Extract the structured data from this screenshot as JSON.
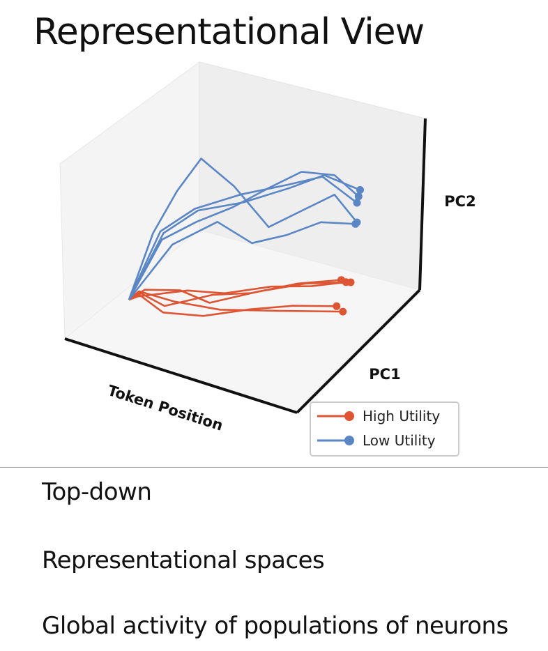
{
  "title": "Representational View",
  "chart_data": {
    "type": "line",
    "projection": "3d",
    "xlabel": "Token Position",
    "ylabel": "PC1",
    "zlabel": "PC2",
    "xlim": [
      0,
      1
    ],
    "ylim": [
      -1,
      1
    ],
    "zlim": [
      -1,
      1
    ],
    "grid": false,
    "legend": {
      "position": "bottom-right",
      "entries": [
        "High Utility",
        "Low Utility"
      ]
    },
    "colors": {
      "High Utility": "#dd5533",
      "Low Utility": "#5b86c5"
    },
    "series": [
      {
        "name": "High Utility",
        "trajectories": [
          [
            [
              0,
              0,
              -0.55
            ],
            [
              0.05,
              0.05,
              -0.5
            ],
            [
              0.2,
              -0.2,
              -0.55
            ],
            [
              0.4,
              0,
              -0.5
            ],
            [
              0.6,
              -0.1,
              -0.45
            ],
            [
              0.8,
              0.05,
              -0.4
            ],
            [
              1,
              0.1,
              -0.38
            ]
          ],
          [
            [
              0,
              0,
              -0.55
            ],
            [
              0.05,
              -0.05,
              -0.5
            ],
            [
              0.25,
              0.2,
              -0.52
            ],
            [
              0.45,
              0.05,
              -0.5
            ],
            [
              0.65,
              0.2,
              -0.48
            ],
            [
              0.85,
              0.15,
              -0.46
            ],
            [
              1,
              0.25,
              -0.45
            ]
          ],
          [
            [
              0,
              0,
              -0.55
            ],
            [
              0.06,
              0.1,
              -0.48
            ],
            [
              0.2,
              0.3,
              -0.55
            ],
            [
              0.4,
              -0.1,
              -0.55
            ],
            [
              0.6,
              0.1,
              -0.5
            ],
            [
              0.8,
              0.3,
              -0.48
            ],
            [
              1,
              0.4,
              -0.5
            ]
          ],
          [
            [
              0,
              0,
              -0.55
            ],
            [
              0.05,
              0,
              -0.5
            ],
            [
              0.2,
              -0.25,
              -0.6
            ],
            [
              0.4,
              -0.3,
              -0.62
            ],
            [
              0.6,
              -0.15,
              -0.6
            ],
            [
              0.8,
              -0.1,
              -0.58
            ],
            [
              1,
              -0.05,
              -0.6
            ]
          ],
          [
            [
              0,
              0,
              -0.55
            ],
            [
              0.04,
              0.05,
              -0.48
            ],
            [
              0.2,
              0.1,
              -0.6
            ],
            [
              0.45,
              -0.1,
              -0.62
            ],
            [
              0.7,
              0.05,
              -0.68
            ],
            [
              0.85,
              0.1,
              -0.7
            ],
            [
              1,
              0.15,
              -0.72
            ]
          ]
        ]
      },
      {
        "name": "Low Utility",
        "trajectories": [
          [
            [
              0,
              0,
              -0.55
            ],
            [
              0.1,
              0.1,
              0.1
            ],
            [
              0.2,
              0.2,
              0.5
            ],
            [
              0.3,
              0.3,
              0.8
            ],
            [
              0.45,
              0.35,
              0.5
            ],
            [
              0.6,
              0.45,
              0.05
            ],
            [
              0.75,
              0.5,
              0.2
            ],
            [
              0.9,
              0.55,
              0.35
            ],
            [
              1,
              0.6,
              0.05
            ]
          ],
          [
            [
              0,
              0,
              -0.55
            ],
            [
              0.15,
              0,
              0.15
            ],
            [
              0.3,
              0.1,
              0.35
            ],
            [
              0.5,
              0.25,
              0.45
            ],
            [
              0.7,
              0.4,
              0.5
            ],
            [
              0.85,
              0.5,
              0.55
            ],
            [
              1,
              0.6,
              0.25
            ]
          ],
          [
            [
              0,
              0,
              -0.55
            ],
            [
              0.15,
              0.05,
              0.05
            ],
            [
              0.3,
              0.15,
              0.2
            ],
            [
              0.45,
              0.3,
              0.3
            ],
            [
              0.6,
              0.45,
              0.45
            ],
            [
              0.75,
              0.5,
              0.6
            ],
            [
              0.9,
              0.55,
              0.55
            ],
            [
              1,
              0.65,
              0.3
            ]
          ],
          [
            [
              0,
              0,
              -0.55
            ],
            [
              0.15,
              0.1,
              0.1
            ],
            [
              0.3,
              0.2,
              0.3
            ],
            [
              0.5,
              0.3,
              0.35
            ],
            [
              0.7,
              0.45,
              0.45
            ],
            [
              0.85,
              0.55,
              0.55
            ],
            [
              1,
              0.7,
              0.35
            ]
          ],
          [
            [
              0,
              0,
              -0.55
            ],
            [
              0.2,
              0.05,
              0
            ],
            [
              0.4,
              0.15,
              0.2
            ],
            [
              0.55,
              0.25,
              -0.05
            ],
            [
              0.7,
              0.35,
              0
            ],
            [
              0.85,
              0.45,
              0.1
            ],
            [
              1,
              0.55,
              0.05
            ]
          ]
        ]
      }
    ]
  },
  "captions": [
    "Top-down",
    "Representational spaces",
    "Global activity of populations of neurons"
  ]
}
